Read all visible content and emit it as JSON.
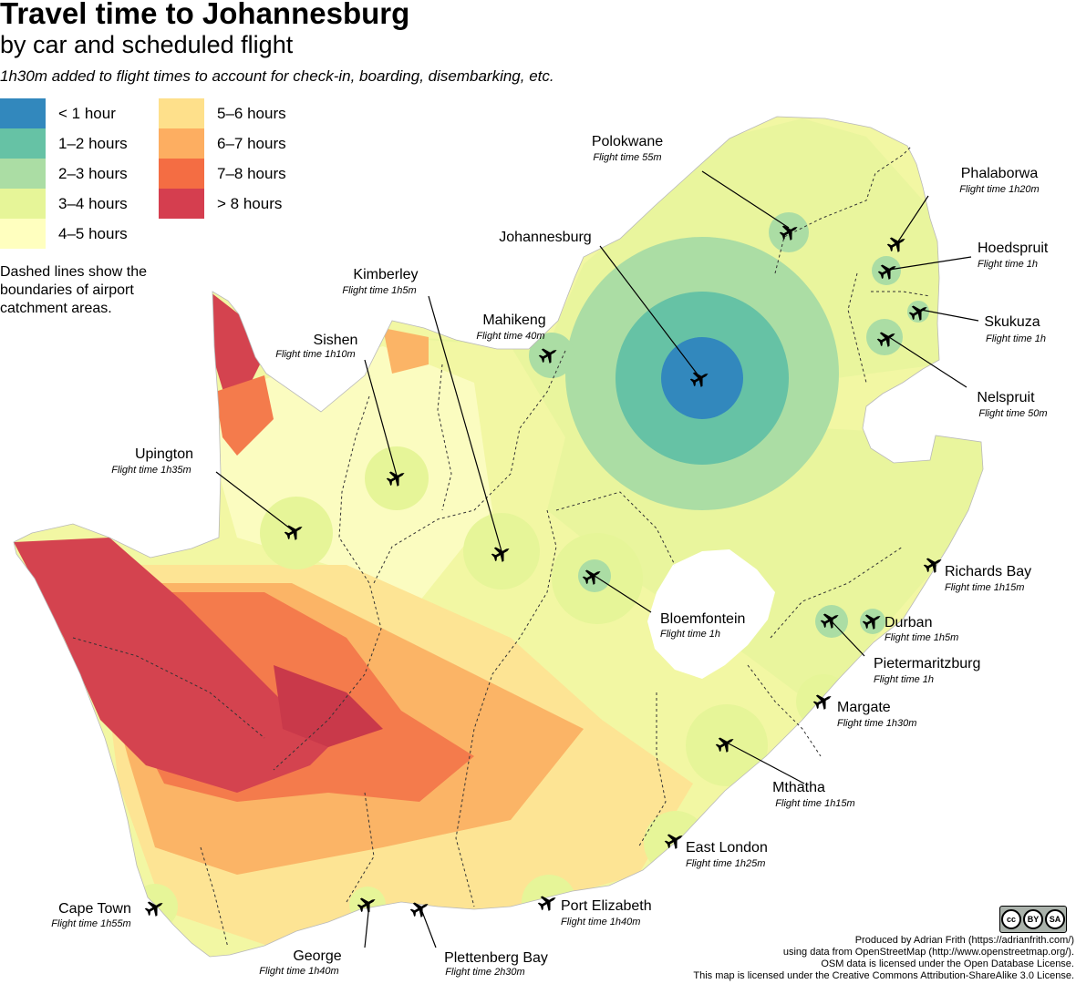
{
  "title": "Travel time to Johannesburg",
  "subtitle": "by car and scheduled flight",
  "note": "1h30m added to flight times to account for check-in, boarding, disembarking, etc.",
  "legend": [
    {
      "label": "< 1 hour",
      "color": "#3288bd"
    },
    {
      "label": "1–2 hours",
      "color": "#66c2a5"
    },
    {
      "label": "2–3 hours",
      "color": "#abdda4"
    },
    {
      "label": "3–4 hours",
      "color": "#e6f598"
    },
    {
      "label": "4–5 hours",
      "color": "#ffffbf"
    },
    {
      "label": "5–6 hours",
      "color": "#fee08b"
    },
    {
      "label": "6–7 hours",
      "color": "#fdae61"
    },
    {
      "label": "7–8 hours",
      "color": "#f46d43"
    },
    {
      "label": "> 8 hours",
      "color": "#d53e4f"
    }
  ],
  "dashed_note": "Dashed lines show the boundaries of airport catchment areas.",
  "airports": [
    {
      "name": "Polokwane",
      "flight": "Flight time 55m"
    },
    {
      "name": "Phalaborwa",
      "flight": "Flight time 1h20m"
    },
    {
      "name": "Hoedspruit",
      "flight": "Flight time 1h"
    },
    {
      "name": "Johannesburg",
      "flight": ""
    },
    {
      "name": "Skukuza",
      "flight": "Flight time 1h"
    },
    {
      "name": "Nelspruit",
      "flight": "Flight time 50m"
    },
    {
      "name": "Kimberley",
      "flight": "Flight time 1h5m"
    },
    {
      "name": "Mahikeng",
      "flight": "Flight time 40m"
    },
    {
      "name": "Sishen",
      "flight": "Flight time 1h10m"
    },
    {
      "name": "Upington",
      "flight": "Flight time 1h35m"
    },
    {
      "name": "Richards Bay",
      "flight": "Flight time 1h15m"
    },
    {
      "name": "Bloemfontein",
      "flight": "Flight time 1h"
    },
    {
      "name": "Durban",
      "flight": "Flight time 1h5m"
    },
    {
      "name": "Pietermaritzburg",
      "flight": "Flight time 1h"
    },
    {
      "name": "Margate",
      "flight": "Flight time 1h30m"
    },
    {
      "name": "Mthatha",
      "flight": "Flight time 1h15m"
    },
    {
      "name": "East London",
      "flight": "Flight time 1h25m"
    },
    {
      "name": "Port Elizabeth",
      "flight": "Flight time 1h40m"
    },
    {
      "name": "Cape Town",
      "flight": "Flight time 1h55m"
    },
    {
      "name": "George",
      "flight": "Flight time 1h40m"
    },
    {
      "name": "Plettenberg Bay",
      "flight": "Flight time 2h30m"
    }
  ],
  "credits": {
    "line1": "Produced by Adrian Frith (https://adrianfrith.com/)",
    "line2": "using data from OpenStreetMap (http://www.openstreetmap.org/).",
    "line3": "OSM data is licensed under the Open Database License.",
    "line4": "This map is licensed under the Creative Commons Attribution-ShareAlike 3.0 License."
  },
  "license_badge": {
    "cc": "cc",
    "by": "BY",
    "sa": "SA"
  }
}
